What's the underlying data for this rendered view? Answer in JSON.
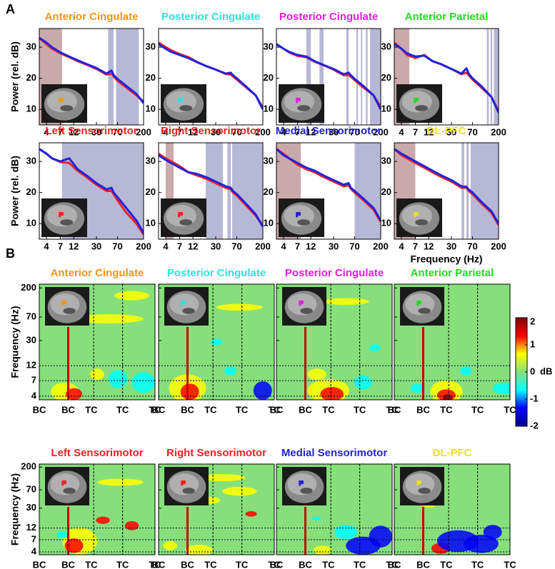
{
  "panel_labels": [
    "A",
    "B"
  ],
  "chart_data": [
    {
      "type": "line",
      "title": "Anterior Cingulate",
      "title_color": "#f7941d",
      "y_label": "Power (rel. dB)",
      "log_x": true,
      "x": [
        3,
        4,
        5,
        7,
        10,
        14,
        20,
        30,
        45,
        55,
        60,
        70,
        100,
        150,
        200
      ],
      "series": [
        {
          "color": "#ee2222",
          "values": [
            33,
            31,
            29.5,
            28,
            26.8,
            25.5,
            24.4,
            23,
            21.2,
            21.5,
            20.6,
            19.2,
            17,
            14.5,
            12.5
          ]
        },
        {
          "color": "#2222dd",
          "values": [
            33,
            31.5,
            30,
            28.3,
            27,
            25.8,
            24.6,
            23.3,
            21.5,
            22.5,
            21,
            19.8,
            17.5,
            15,
            12
          ]
        }
      ],
      "shaded_ranges": [
        {
          "color": "#c9a9ab",
          "range": [
            3,
            7.5
          ]
        },
        {
          "color": "#b7b7d6",
          "range": [
            48,
            60
          ]
        },
        {
          "color": "#b7b7d6",
          "range": [
            66,
            165
          ]
        }
      ],
      "xlim": [
        3,
        200
      ],
      "ylim": [
        5,
        36
      ],
      "xticks": [
        4,
        7,
        12,
        30,
        70,
        200
      ],
      "yticks": [
        10,
        20,
        30
      ]
    },
    {
      "type": "line",
      "title": "Posterior Cingulate",
      "title_color": "#2fe0e6",
      "log_x": true,
      "x": [
        3,
        4,
        5,
        7,
        10,
        14,
        20,
        30,
        45,
        55,
        60,
        70,
        100,
        150,
        200
      ],
      "series": [
        {
          "color": "#ee2222",
          "values": [
            31.5,
            30,
            29,
            27.8,
            26.8,
            25.3,
            24,
            22.8,
            21.4,
            21.2,
            20.6,
            19.6,
            17.2,
            14.5,
            10.5
          ]
        },
        {
          "color": "#2222dd",
          "values": [
            31,
            29.5,
            28.5,
            27.5,
            26.5,
            25.2,
            24,
            22.8,
            21.5,
            21.8,
            21,
            20,
            17.5,
            14.5,
            10
          ]
        }
      ],
      "shaded_ranges": [],
      "xlim": [
        3,
        200
      ],
      "ylim": [
        5,
        36
      ],
      "xticks": [
        4,
        7,
        12,
        30,
        70,
        200
      ],
      "yticks": [
        10,
        20,
        30
      ]
    },
    {
      "type": "line",
      "title": "Posterior Cingulate",
      "title_color": "#e020e0",
      "log_x": true,
      "x": [
        3,
        4,
        5,
        7,
        10,
        14,
        20,
        30,
        45,
        55,
        60,
        70,
        100,
        150,
        200
      ],
      "series": [
        {
          "color": "#ee2222",
          "values": [
            31,
            29.5,
            28.3,
            27.2,
            26.8,
            25.3,
            24.2,
            22.8,
            21,
            21,
            20.5,
            19.4,
            17,
            14.5,
            10.8
          ]
        },
        {
          "color": "#2222dd",
          "values": [
            31,
            29.5,
            28.5,
            27.5,
            27,
            25.5,
            24.3,
            23,
            21.3,
            21.8,
            21,
            19.8,
            17.5,
            14.5,
            10
          ]
        }
      ],
      "shaded_ranges": [
        {
          "color": "#b7b7d6",
          "range": [
            10,
            12
          ]
        },
        {
          "color": "#b7b7d6",
          "range": [
            17,
            20
          ]
        },
        {
          "color": "#b7b7d6",
          "range": [
            50,
            55
          ]
        },
        {
          "color": "#b7b7d6",
          "range": [
            75,
            80
          ]
        },
        {
          "color": "#b7b7d6",
          "range": [
            90,
            95
          ]
        },
        {
          "color": "#b7b7d6",
          "range": [
            110,
            118
          ]
        },
        {
          "color": "#b7b7d6",
          "range": [
            130,
            200
          ]
        }
      ],
      "xlim": [
        3,
        200
      ],
      "ylim": [
        5,
        36
      ],
      "xticks": [
        4,
        7,
        12,
        30,
        70,
        200
      ],
      "yticks": [
        10,
        20,
        30
      ]
    },
    {
      "type": "line",
      "title": "Anterior Parietal",
      "title_color": "#22dd22",
      "log_x": true,
      "x": [
        3,
        4,
        5,
        7,
        10,
        14,
        20,
        30,
        45,
        55,
        60,
        70,
        100,
        150,
        200
      ],
      "series": [
        {
          "color": "#ee2222",
          "values": [
            31.5,
            29.5,
            27.5,
            26.5,
            27.5,
            25.5,
            24.5,
            23,
            21.3,
            21.8,
            21,
            19.6,
            17,
            14,
            9.5
          ]
        },
        {
          "color": "#2222dd",
          "values": [
            31,
            29.5,
            28,
            27,
            27.3,
            25.5,
            24.5,
            23,
            21.5,
            23.2,
            21.5,
            20,
            17.5,
            14,
            9
          ]
        }
      ],
      "shaded_ranges": [
        {
          "color": "#c9a9ab",
          "range": [
            3,
            5.5
          ]
        },
        {
          "color": "#b7b7d6",
          "range": [
            125,
            135
          ]
        },
        {
          "color": "#b7b7d6",
          "range": [
            145,
            155
          ]
        },
        {
          "color": "#b7b7d6",
          "range": [
            165,
            200
          ]
        }
      ],
      "xlim": [
        3,
        200
      ],
      "ylim": [
        5,
        36
      ],
      "xticks": [
        4,
        7,
        12,
        30,
        70,
        200
      ],
      "yticks": [
        10,
        20,
        30
      ]
    },
    {
      "type": "line",
      "title": "Left Sensorimotor",
      "title_color": "#ee2222",
      "y_label": "Power (rel. dB)",
      "log_x": true,
      "x": [
        3,
        4,
        5,
        7,
        10,
        14,
        20,
        30,
        45,
        55,
        60,
        70,
        100,
        150,
        200
      ],
      "series": [
        {
          "color": "#ee2222",
          "values": [
            34,
            32.5,
            31,
            29.8,
            29.5,
            27,
            25,
            22.5,
            20.5,
            20.5,
            19.5,
            17.5,
            13.5,
            10,
            6.5
          ]
        },
        {
          "color": "#2222dd",
          "values": [
            34,
            32.5,
            31,
            30,
            31,
            27.5,
            25.5,
            23,
            21,
            21.5,
            20,
            18.5,
            15,
            11,
            7
          ]
        }
      ],
      "shaded_ranges": [
        {
          "color": "#b7b7d6",
          "range": [
            7.5,
            200
          ]
        }
      ],
      "xlim": [
        3,
        200
      ],
      "ylim": [
        5,
        36
      ],
      "xticks": [
        4,
        7,
        12,
        30,
        70,
        200
      ],
      "yticks": [
        10,
        20,
        30
      ]
    },
    {
      "type": "line",
      "title": "Right Sensorimotor",
      "title_color": "#ee2222",
      "log_x": true,
      "x": [
        3,
        4,
        5,
        7,
        10,
        14,
        20,
        30,
        45,
        55,
        60,
        70,
        100,
        150,
        200
      ],
      "series": [
        {
          "color": "#ee2222",
          "values": [
            32.5,
            31,
            30,
            28.5,
            26.5,
            25.5,
            24.5,
            23,
            21.5,
            21,
            20,
            19,
            16,
            12.5,
            9.5
          ]
        },
        {
          "color": "#2222dd",
          "values": [
            32,
            30.5,
            29.5,
            28,
            26.5,
            26,
            25,
            23.5,
            22,
            21.5,
            20.5,
            19.5,
            16.5,
            13,
            9
          ]
        }
      ],
      "shaded_ranges": [
        {
          "color": "#c9a9ab",
          "range": [
            4,
            5.5
          ]
        },
        {
          "color": "#b7b7d6",
          "range": [
            20,
            40
          ]
        },
        {
          "color": "#b7b7d6",
          "range": [
            48,
            55
          ]
        },
        {
          "color": "#b7b7d6",
          "range": [
            58,
            200
          ]
        }
      ],
      "xlim": [
        3,
        200
      ],
      "ylim": [
        5,
        36
      ],
      "xticks": [
        4,
        7,
        12,
        30,
        70,
        200
      ],
      "yticks": [
        10,
        20,
        30
      ]
    },
    {
      "type": "line",
      "title": "Medial Sensorimotor",
      "title_color": "#2222cc",
      "log_x": true,
      "x": [
        3,
        4,
        5,
        7,
        10,
        14,
        20,
        30,
        45,
        55,
        60,
        70,
        100,
        150,
        200
      ],
      "series": [
        {
          "color": "#ee2222",
          "values": [
            34,
            32.5,
            31,
            29,
            27.5,
            26.5,
            25,
            23.5,
            22,
            22.3,
            21.2,
            20,
            17.5,
            14.5,
            10.5
          ]
        },
        {
          "color": "#2222dd",
          "values": [
            34,
            32,
            31,
            29.5,
            28,
            27,
            25.5,
            24,
            22.5,
            23,
            21.5,
            20.5,
            18,
            15,
            11
          ]
        }
      ],
      "shaded_ranges": [
        {
          "color": "#c9a9ab",
          "range": [
            3,
            8
          ]
        },
        {
          "color": "#b7b7d6",
          "range": [
            70,
            200
          ]
        }
      ],
      "xlim": [
        3,
        200
      ],
      "ylim": [
        5,
        36
      ],
      "xticks": [
        4,
        7,
        12,
        30,
        70,
        200
      ],
      "yticks": [
        10,
        20,
        30
      ]
    },
    {
      "type": "line",
      "title": "DL-PFC",
      "title_color": "#eedd22",
      "x_label": "Frequency (Hz)",
      "log_x": true,
      "x": [
        3,
        4,
        5,
        7,
        10,
        14,
        20,
        30,
        45,
        55,
        60,
        70,
        100,
        150,
        200
      ],
      "series": [
        {
          "color": "#ee2222",
          "values": [
            34,
            32,
            31,
            29.5,
            28,
            26.5,
            25,
            23.5,
            21.5,
            21.5,
            20.5,
            19.5,
            16.5,
            13.5,
            9.5
          ]
        },
        {
          "color": "#2222dd",
          "values": [
            34,
            32.5,
            31.5,
            30,
            28.5,
            27,
            25.5,
            24,
            22,
            21.8,
            21,
            20,
            17,
            14,
            10
          ]
        }
      ],
      "shaded_ranges": [
        {
          "color": "#c9a9ab",
          "range": [
            3,
            7
          ]
        },
        {
          "color": "#b7b7d6",
          "range": [
            45,
            50
          ]
        },
        {
          "color": "#b7b7d6",
          "range": [
            55,
            60
          ]
        },
        {
          "color": "#b7b7d6",
          "range": [
            65,
            200
          ]
        }
      ],
      "xlim": [
        3,
        200
      ],
      "ylim": [
        5,
        36
      ],
      "xticks": [
        4,
        7,
        12,
        30,
        70,
        200
      ],
      "yticks": [
        10,
        20,
        30
      ]
    },
    {
      "type": "heatmap",
      "title": "Anterior Cingulate",
      "title_color": "#f7941d",
      "y_label": "Frequency (Hz)",
      "log_y": true,
      "categories": [
        "BC",
        "BC",
        "TC",
        "TC",
        "TC"
      ],
      "ylim": [
        3.5,
        230
      ],
      "yticks": [
        4,
        7,
        12,
        30,
        70,
        200
      ]
    },
    {
      "type": "heatmap",
      "title": "Posterior Cingulate",
      "title_color": "#2fe0e6",
      "log_y": true,
      "categories": [
        "BC",
        "BC",
        "TC",
        "TC",
        "TC"
      ],
      "ylim": [
        3.5,
        230
      ],
      "yticks": [
        4,
        7,
        12,
        30,
        70,
        200
      ]
    },
    {
      "type": "heatmap",
      "title": "Posterior Cingulate",
      "title_color": "#e020e0",
      "log_y": true,
      "categories": [
        "BC",
        "BC",
        "TC",
        "TC",
        "TC"
      ],
      "ylim": [
        3.5,
        230
      ],
      "yticks": [
        4,
        7,
        12,
        30,
        70,
        200
      ]
    },
    {
      "type": "heatmap",
      "title": "Anterior Parietal",
      "title_color": "#22dd22",
      "log_y": true,
      "categories": [
        "BC",
        "BC",
        "TC",
        "TC",
        "TC"
      ],
      "ylim": [
        3.5,
        230
      ],
      "yticks": [
        4,
        7,
        12,
        30,
        70,
        200
      ],
      "colorbar": {
        "zlim": [
          -2,
          2
        ],
        "ticks": [
          2,
          1,
          0,
          -1,
          -2
        ],
        "label": "dB",
        "colormap": [
          "#00008f",
          "#0000ff",
          "#00ffff",
          "#86df7a",
          "#ffff00",
          "#ff0000",
          "#800000"
        ]
      }
    },
    {
      "type": "heatmap",
      "title": "Left Sensorimotor",
      "title_color": "#ee2222",
      "y_label": "Frequency (Hz)",
      "log_y": true,
      "categories": [
        "BC",
        "BC",
        "TC",
        "TC",
        "TC"
      ],
      "ylim": [
        3.5,
        230
      ],
      "yticks": [
        4,
        7,
        12,
        30,
        70,
        200
      ]
    },
    {
      "type": "heatmap",
      "title": "Right Sensorimotor",
      "title_color": "#ee2222",
      "log_y": true,
      "categories": [
        "BC",
        "BC",
        "TC",
        "TC",
        "TC"
      ],
      "ylim": [
        3.5,
        230
      ],
      "yticks": [
        4,
        7,
        12,
        30,
        70,
        200
      ]
    },
    {
      "type": "heatmap",
      "title": "Medial Sensorimotor",
      "title_color": "#2222cc",
      "log_y": true,
      "categories": [
        "BC",
        "BC",
        "TC",
        "TC",
        "TC"
      ],
      "ylim": [
        3.5,
        230
      ],
      "yticks": [
        4,
        7,
        12,
        30,
        70,
        200
      ]
    },
    {
      "type": "heatmap",
      "title": "DL-PFC",
      "title_color": "#eedd22",
      "log_y": true,
      "categories": [
        "BC",
        "BC",
        "TC",
        "TC",
        "TC"
      ],
      "ylim": [
        3.5,
        230
      ],
      "yticks": [
        4,
        7,
        12,
        30,
        70,
        200
      ]
    }
  ]
}
